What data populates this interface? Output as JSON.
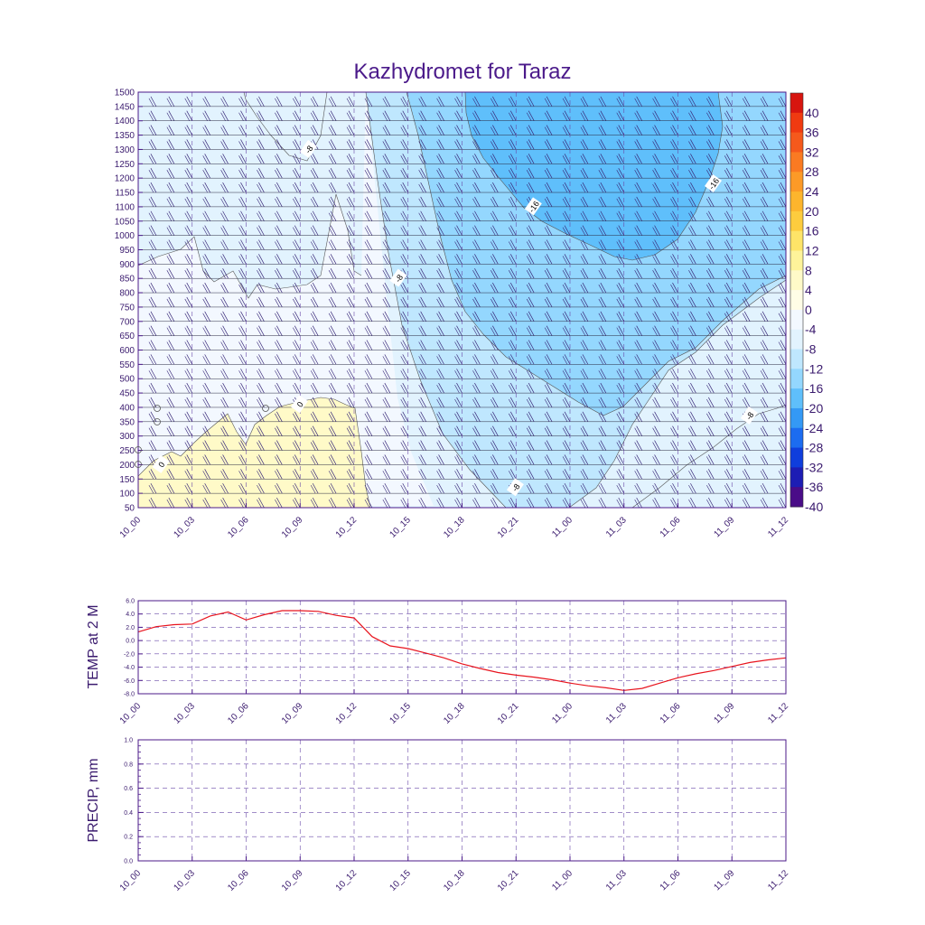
{
  "title": "Kazhydromet for Taraz",
  "colors": {
    "axis": "#4b1a8a",
    "text": "#3a1a6e",
    "temp_line": "#e8141e",
    "grid": "#6a4aa8",
    "barb": "#3a2a7a"
  },
  "time_labels": [
    "10_00",
    "10_03",
    "10_06",
    "10_09",
    "10_12",
    "10_15",
    "10_18",
    "10_21",
    "11_00",
    "11_03",
    "11_06",
    "11_09",
    "11_12"
  ],
  "chart_data": [
    {
      "type": "heatmap",
      "title": "Kazhydromet for Taraz",
      "xlabel": "",
      "ylabel": "",
      "x_labels": [
        "10_00",
        "10_03",
        "10_06",
        "10_09",
        "10_12",
        "10_15",
        "10_18",
        "10_21",
        "11_00",
        "11_03",
        "11_06",
        "11_09",
        "11_12"
      ],
      "x_range_hours": [
        0,
        36
      ],
      "y_levels": [
        1500,
        1450,
        1400,
        1350,
        1300,
        1250,
        1200,
        1150,
        1100,
        1050,
        1000,
        950,
        900,
        850,
        800,
        750,
        700,
        650,
        600,
        550,
        500,
        450,
        400,
        350,
        300,
        250,
        200,
        150,
        100,
        50
      ],
      "ylim": [
        50,
        1500
      ],
      "colorbar_labels": [
        "40",
        "36",
        "32",
        "28",
        "24",
        "20",
        "16",
        "12",
        "8",
        "4",
        "0",
        "-4",
        "-8",
        "-12",
        "-16",
        "-20",
        "-24",
        "-28",
        "-32",
        "-36",
        "-40"
      ],
      "colorbar_colors": [
        "#d7150f",
        "#f03a11",
        "#f5591c",
        "#fa7a22",
        "#fc9a27",
        "#fdb52d",
        "#fdcc3e",
        "#fee468",
        "#fef39a",
        "#fffac8",
        "#fffde6",
        "#f3f8ff",
        "#e2f3fe",
        "#bfe7fe",
        "#94d7fe",
        "#5fbffb",
        "#3499f5",
        "#1c6cf0",
        "#0f3edc",
        "#1d1db4",
        "#4a0c88"
      ],
      "contour_labels": [
        {
          "text": "-8",
          "x_hours": 9.5,
          "y_level": 1300
        },
        {
          "text": "-16",
          "x_hours": 22,
          "y_level": 1100
        },
        {
          "text": "-16",
          "x_hours": 32,
          "y_level": 1180
        },
        {
          "text": "-8",
          "x_hours": 14.5,
          "y_level": 850
        },
        {
          "text": "0",
          "x_hours": 9,
          "y_level": 410
        },
        {
          "text": "0",
          "x_hours": 1.3,
          "y_level": 200
        },
        {
          "text": "-8",
          "x_hours": 21,
          "y_level": 120
        },
        {
          "text": "-8",
          "x_hours": 34,
          "y_level": 370
        }
      ]
    },
    {
      "type": "line",
      "title": "",
      "xlabel": "",
      "ylabel": "TEMP at 2 M",
      "y_tick_labels": [
        "6.0",
        "4.0",
        "2.0",
        "0.0",
        "-2.0",
        "-4.0",
        "-6.0",
        "-8.0"
      ],
      "ylim": [
        -8,
        6
      ],
      "x_labels": [
        "10_00",
        "10_03",
        "10_06",
        "10_09",
        "10_12",
        "10_15",
        "10_18",
        "10_21",
        "11_00",
        "11_03",
        "11_06",
        "11_09",
        "11_12"
      ],
      "series": [
        {
          "x_hours": [
            0,
            1,
            2,
            3,
            4,
            5,
            6,
            7,
            8,
            9,
            10,
            11,
            12,
            13,
            14,
            15,
            16,
            17,
            18,
            19,
            20,
            21,
            22,
            23,
            24,
            25,
            26,
            27,
            28,
            29,
            30,
            31,
            32,
            33,
            34,
            35,
            36
          ],
          "values": [
            1.3,
            2.1,
            2.4,
            2.5,
            3.7,
            4.3,
            3.1,
            3.9,
            4.5,
            4.5,
            4.4,
            3.8,
            3.4,
            0.6,
            -0.8,
            -1.2,
            -1.9,
            -2.6,
            -3.5,
            -4.2,
            -4.8,
            -5.2,
            -5.5,
            -5.9,
            -6.4,
            -6.8,
            -7.1,
            -7.5,
            -7.2,
            -6.4,
            -5.6,
            -5.0,
            -4.5,
            -3.9,
            -3.3,
            -2.9,
            -2.6
          ]
        }
      ]
    },
    {
      "type": "line",
      "title": "",
      "xlabel": "",
      "ylabel": "PRECIP, mm",
      "y_tick_labels": [
        "1.0",
        "0.8",
        "0.6",
        "0.4",
        "0.2",
        "0.0"
      ],
      "ylim": [
        0,
        1
      ],
      "x_labels": [
        "10_00",
        "10_03",
        "10_06",
        "10_09",
        "10_12",
        "10_15",
        "10_18",
        "10_21",
        "11_00",
        "11_03",
        "11_06",
        "11_09",
        "11_12"
      ],
      "series": []
    }
  ]
}
